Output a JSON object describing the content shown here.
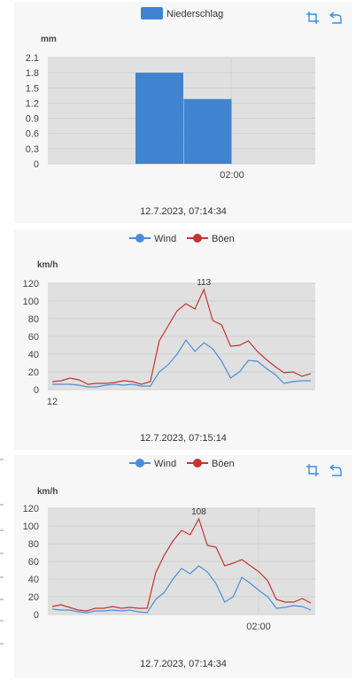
{
  "colors": {
    "bar": "#3f84cf",
    "wind": "#4a8fd6",
    "gust": "#c23531",
    "plot_bg": "#e0e0e0",
    "card_bg": "#f7f7f7",
    "icon": "#3a8ee6"
  },
  "toolbar_icons": [
    "crop-icon",
    "restore-icon"
  ],
  "cards": [
    {
      "timestamp": "12.7.2023, 07:14:34",
      "chart_data": {
        "type": "bar",
        "legend": [
          "Niederschlag"
        ],
        "ylabel": "mm",
        "ylim": [
          0,
          2.1
        ],
        "yticks": [
          "0",
          "0.3",
          "0.6",
          "0.9",
          "1.2",
          "1.5",
          "1.8",
          "2.1"
        ],
        "xticks": [
          "02:00"
        ],
        "series": [
          {
            "name": "Niederschlag",
            "values": [
              0,
              0,
              1.8,
              1.28,
              0,
              0
            ]
          }
        ]
      }
    },
    {
      "timestamp": "12.7.2023, 07:15:14",
      "chart_data": {
        "type": "line",
        "legend": [
          "Wind",
          "Böen"
        ],
        "ylabel": "km/h",
        "ylim": [
          0,
          120
        ],
        "yticks": [
          "0",
          "20",
          "40",
          "60",
          "80",
          "100",
          "120"
        ],
        "xticks": [
          "12"
        ],
        "max_label": "113",
        "series": [
          {
            "name": "Wind",
            "values": [
              6,
              6,
              6,
              5,
              3,
              3,
              5,
              6,
              5,
              6,
              4,
              4,
              20,
              28,
              40,
              56,
              43,
              53,
              46,
              32,
              13,
              20,
              33,
              32,
              24,
              17,
              7,
              9,
              10,
              10
            ]
          },
          {
            "name": "Böen",
            "values": [
              9,
              10,
              13,
              11,
              6,
              7,
              7,
              8,
              10,
              9,
              6,
              9,
              55,
              72,
              89,
              97,
              91,
              113,
              78,
              73,
              49,
              50,
              55,
              43,
              34,
              26,
              19,
              20,
              15,
              18
            ]
          }
        ]
      }
    },
    {
      "timestamp": "12.7.2023, 07:14:34",
      "chart_data": {
        "type": "line",
        "legend": [
          "Wind",
          "Böen"
        ],
        "ylabel": "km/h",
        "ylim": [
          0,
          120
        ],
        "yticks": [
          "0",
          "20",
          "40",
          "60",
          "80",
          "100",
          "120"
        ],
        "xticks": [
          "02:00"
        ],
        "max_label": "108",
        "series": [
          {
            "name": "Wind",
            "values": [
              6,
              5,
              5,
              3,
              2,
              4,
              4,
              5,
              4,
              5,
              3,
              2,
              17,
              25,
              40,
              52,
              46,
              55,
              48,
              35,
              14,
              20,
              42,
              35,
              27,
              20,
              7,
              8,
              10,
              9,
              5
            ]
          },
          {
            "name": "Böen",
            "values": [
              9,
              11,
              8,
              5,
              4,
              7,
              7,
              9,
              7,
              8,
              7,
              7,
              47,
              67,
              83,
              95,
              90,
              108,
              78,
              76,
              55,
              58,
              62,
              55,
              48,
              38,
              17,
              14,
              14,
              18,
              13
            ]
          }
        ]
      }
    }
  ]
}
